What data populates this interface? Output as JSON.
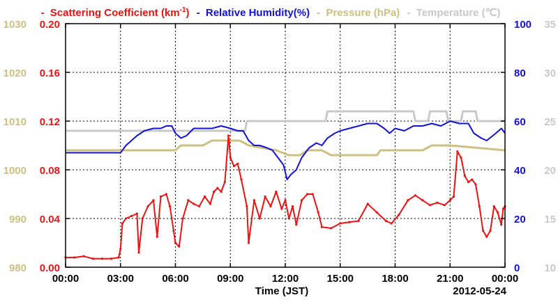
{
  "colors": {
    "scattering": "#ee1111",
    "humidity": "#1111dd",
    "pressure": "#cdbf80",
    "temperature": "#c8c8c8",
    "axis": "#000000"
  },
  "legend": {
    "dash": "-",
    "scattering_label": "Scattering Coefficient (km",
    "scattering_sup": "-1",
    "scattering_close": ")",
    "humidity_label": "Relative Humidity(%)",
    "pressure_label": "Pressure (hPa)",
    "temperature_label": "Temperature (℃)"
  },
  "chart_data": {
    "type": "line",
    "grid": true,
    "xlabel": "Time (JST)",
    "date": "2012-05-24",
    "x_tick_labels": [
      "00:00",
      "03:00",
      "06:00",
      "09:00",
      "12:00",
      "15:00",
      "18:00",
      "21:00",
      "00:00"
    ],
    "xlim_hours": [
      0,
      24
    ],
    "axes": {
      "pressure": {
        "ylim": [
          980,
          1030
        ],
        "ticks": [
          "980",
          "990",
          "1000",
          "1010",
          "1020",
          "1030"
        ]
      },
      "scattering": {
        "ylim": [
          0,
          0.2
        ],
        "ticks": [
          "0.00",
          "0.04",
          "0.08",
          "0.12",
          "0.16",
          "0.20"
        ]
      },
      "humidity": {
        "ylim": [
          0,
          100
        ],
        "ticks": [
          "0",
          "20",
          "40",
          "60",
          "80",
          "100"
        ]
      },
      "temperature": {
        "ylim": [
          10,
          35
        ],
        "ticks": [
          "10",
          "15",
          "20",
          "25",
          "30",
          "35"
        ]
      }
    },
    "series": [
      {
        "name": "Scattering Coefficient (km-1)",
        "axis": "scattering",
        "points": [
          [
            0,
            0.008
          ],
          [
            0.5,
            0.008
          ],
          [
            1,
            0.009
          ],
          [
            1.5,
            0.007
          ],
          [
            2,
            0.007
          ],
          [
            2.5,
            0.007
          ],
          [
            2.9,
            0.008
          ],
          [
            3.0,
            0.015
          ],
          [
            3.1,
            0.036
          ],
          [
            3.3,
            0.04
          ],
          [
            3.6,
            0.042
          ],
          [
            3.9,
            0.044
          ],
          [
            4.0,
            0.012
          ],
          [
            4.2,
            0.04
          ],
          [
            4.5,
            0.05
          ],
          [
            4.8,
            0.055
          ],
          [
            5.0,
            0.025
          ],
          [
            5.2,
            0.058
          ],
          [
            5.5,
            0.06
          ],
          [
            5.7,
            0.05
          ],
          [
            5.9,
            0.03
          ],
          [
            6.0,
            0.02
          ],
          [
            6.2,
            0.017
          ],
          [
            6.4,
            0.04
          ],
          [
            6.7,
            0.055
          ],
          [
            7.0,
            0.052
          ],
          [
            7.3,
            0.05
          ],
          [
            7.6,
            0.058
          ],
          [
            7.9,
            0.052
          ],
          [
            8.1,
            0.062
          ],
          [
            8.3,
            0.065
          ],
          [
            8.5,
            0.062
          ],
          [
            8.7,
            0.07
          ],
          [
            8.9,
            0.108
          ],
          [
            9.0,
            0.09
          ],
          [
            9.2,
            0.083
          ],
          [
            9.4,
            0.085
          ],
          [
            9.6,
            0.072
          ],
          [
            9.9,
            0.05
          ],
          [
            10.0,
            0.02
          ],
          [
            10.3,
            0.055
          ],
          [
            10.6,
            0.04
          ],
          [
            10.9,
            0.058
          ],
          [
            11.2,
            0.05
          ],
          [
            11.5,
            0.062
          ],
          [
            11.8,
            0.048
          ],
          [
            12.0,
            0.055
          ],
          [
            12.2,
            0.04
          ],
          [
            12.4,
            0.05
          ],
          [
            12.6,
            0.035
          ],
          [
            12.9,
            0.055
          ],
          [
            13.2,
            0.06
          ],
          [
            13.5,
            0.06
          ],
          [
            13.8,
            0.045
          ],
          [
            14.0,
            0.033
          ],
          [
            14.5,
            0.032
          ],
          [
            15.0,
            0.036
          ],
          [
            15.5,
            0.037
          ],
          [
            16.0,
            0.038
          ],
          [
            16.5,
            0.052
          ],
          [
            17.0,
            0.045
          ],
          [
            17.5,
            0.038
          ],
          [
            17.8,
            0.036
          ],
          [
            18.2,
            0.043
          ],
          [
            18.7,
            0.055
          ],
          [
            19.1,
            0.059
          ],
          [
            19.5,
            0.055
          ],
          [
            19.9,
            0.051
          ],
          [
            20.3,
            0.053
          ],
          [
            20.7,
            0.051
          ],
          [
            21.0,
            0.055
          ],
          [
            21.2,
            0.058
          ],
          [
            21.4,
            0.095
          ],
          [
            21.6,
            0.09
          ],
          [
            21.8,
            0.075
          ],
          [
            22.0,
            0.07
          ],
          [
            22.2,
            0.072
          ],
          [
            22.4,
            0.068
          ],
          [
            22.6,
            0.05
          ],
          [
            22.8,
            0.03
          ],
          [
            23.0,
            0.025
          ],
          [
            23.2,
            0.03
          ],
          [
            23.4,
            0.05
          ],
          [
            23.6,
            0.045
          ],
          [
            23.8,
            0.035
          ],
          [
            23.9,
            0.048
          ],
          [
            24,
            0.05
          ]
        ]
      },
      {
        "name": "Relative Humidity(%)",
        "axis": "humidity",
        "points": [
          [
            0,
            47
          ],
          [
            3,
            47
          ],
          [
            3.3,
            50
          ],
          [
            3.6,
            52
          ],
          [
            3.9,
            54
          ],
          [
            4.3,
            56
          ],
          [
            4.8,
            57
          ],
          [
            5.2,
            57
          ],
          [
            5.5,
            58
          ],
          [
            5.8,
            58
          ],
          [
            6,
            55
          ],
          [
            6.3,
            53
          ],
          [
            6.6,
            54
          ],
          [
            7,
            57
          ],
          [
            7.6,
            57
          ],
          [
            8.0,
            57
          ],
          [
            8.5,
            58
          ],
          [
            9.0,
            57
          ],
          [
            9.4,
            56
          ],
          [
            9.7,
            56
          ],
          [
            10.0,
            52
          ],
          [
            10.3,
            50
          ],
          [
            10.6,
            50
          ],
          [
            11.0,
            49
          ],
          [
            11.3,
            48
          ],
          [
            11.6,
            45
          ],
          [
            11.9,
            42
          ],
          [
            12.1,
            36
          ],
          [
            12.3,
            38
          ],
          [
            12.6,
            40
          ],
          [
            12.9,
            45
          ],
          [
            13.3,
            49
          ],
          [
            13.7,
            51
          ],
          [
            14.0,
            50
          ],
          [
            14.3,
            53
          ],
          [
            14.7,
            55
          ],
          [
            15.0,
            56
          ],
          [
            15.5,
            57
          ],
          [
            16.0,
            58
          ],
          [
            16.5,
            59
          ],
          [
            17.0,
            59
          ],
          [
            17.4,
            57
          ],
          [
            17.7,
            55
          ],
          [
            18.0,
            57
          ],
          [
            18.5,
            56
          ],
          [
            19.0,
            58
          ],
          [
            19.5,
            58
          ],
          [
            20.0,
            59
          ],
          [
            20.5,
            58
          ],
          [
            21.0,
            60
          ],
          [
            21.5,
            59
          ],
          [
            22.0,
            59
          ],
          [
            22.3,
            55
          ],
          [
            22.7,
            53
          ],
          [
            23.0,
            52
          ],
          [
            23.5,
            55
          ],
          [
            23.8,
            57
          ],
          [
            24,
            55
          ]
        ]
      },
      {
        "name": "Pressure (hPa)",
        "axis": "pressure",
        "points": [
          [
            0,
            1004
          ],
          [
            3,
            1004
          ],
          [
            6,
            1004
          ],
          [
            6.3,
            1005
          ],
          [
            7.5,
            1005
          ],
          [
            8,
            1006
          ],
          [
            9.5,
            1006
          ],
          [
            10,
            1005
          ],
          [
            11.5,
            1004
          ],
          [
            12.2,
            1003
          ],
          [
            12.8,
            1003
          ],
          [
            13.2,
            1004
          ],
          [
            14,
            1004
          ],
          [
            14.5,
            1003
          ],
          [
            17,
            1003
          ],
          [
            17.2,
            1004
          ],
          [
            19.5,
            1004
          ],
          [
            20.0,
            1005
          ],
          [
            20.5,
            1005
          ],
          [
            21,
            1005
          ],
          [
            24,
            1004
          ]
        ]
      },
      {
        "name": "Temperature (℃)",
        "axis": "temperature",
        "points": [
          [
            0,
            24
          ],
          [
            9.8,
            24
          ],
          [
            9.9,
            25
          ],
          [
            14.2,
            25
          ],
          [
            14.3,
            26
          ],
          [
            19.0,
            26
          ],
          [
            19.1,
            25
          ],
          [
            19.8,
            25
          ],
          [
            19.9,
            26
          ],
          [
            20.8,
            26
          ],
          [
            20.9,
            25
          ],
          [
            21.6,
            25
          ],
          [
            21.7,
            26
          ],
          [
            22.4,
            26
          ],
          [
            22.5,
            25
          ],
          [
            24,
            25
          ]
        ]
      }
    ]
  }
}
